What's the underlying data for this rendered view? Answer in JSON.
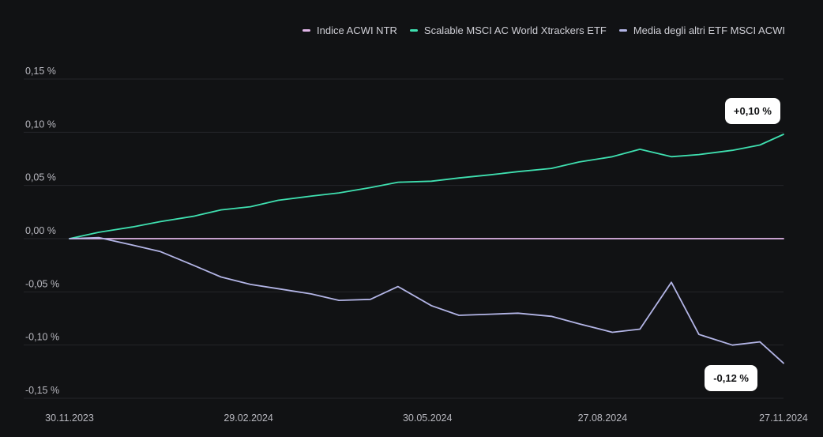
{
  "legend": [
    {
      "label": "Indice ACWI NTR",
      "color": "#e0b5e7"
    },
    {
      "label": "Scalable MSCI AC World Xtrackers ETF",
      "color": "#3fe0b0"
    },
    {
      "label": "Media degli altri ETF MSCI ACWI",
      "color": "#b3b5e6"
    }
  ],
  "callouts": {
    "top": "+0,10 %",
    "bottom": "-0,12 %"
  },
  "chart_data": {
    "type": "line",
    "ylim": [
      -0.15,
      0.15
    ],
    "y_ticks": [
      "0,15 %",
      "0,10 %",
      "0,05 %",
      "0,00 %",
      "-0,05 %",
      "-0,10 %",
      "-0,15 %"
    ],
    "y_tick_values": [
      0.15,
      0.1,
      0.05,
      0.0,
      -0.05,
      -0.1,
      -0.15
    ],
    "x_ticks": [
      "30.11.2023",
      "29.02.2024",
      "30.05.2024",
      "27.08.2024",
      "27.11.2024"
    ],
    "x": [
      "2023-11-30",
      "2023-12-15",
      "2024-01-01",
      "2024-01-15",
      "2024-02-01",
      "2024-02-15",
      "2024-03-01",
      "2024-03-15",
      "2024-04-01",
      "2024-04-15",
      "2024-05-01",
      "2024-05-15",
      "2024-06-01",
      "2024-06-15",
      "2024-07-01",
      "2024-07-15",
      "2024-08-01",
      "2024-08-15",
      "2024-09-01",
      "2024-09-15",
      "2024-10-01",
      "2024-10-15",
      "2024-11-01",
      "2024-11-15",
      "2024-11-27"
    ],
    "series": [
      {
        "name": "Indice ACWI NTR",
        "color": "#e0b5e7",
        "values": [
          0,
          0,
          0,
          0,
          0,
          0,
          0,
          0,
          0,
          0,
          0,
          0,
          0,
          0,
          0,
          0,
          0,
          0,
          0,
          0,
          0,
          0,
          0,
          0,
          0
        ]
      },
      {
        "name": "Scalable MSCI AC World Xtrackers ETF",
        "color": "#3fe0b0",
        "values": [
          0.0,
          0.006,
          0.011,
          0.016,
          0.021,
          0.027,
          0.03,
          0.036,
          0.04,
          0.043,
          0.048,
          0.053,
          0.054,
          0.057,
          0.06,
          0.063,
          0.066,
          0.072,
          0.077,
          0.084,
          0.077,
          0.079,
          0.083,
          0.088,
          0.098
        ]
      },
      {
        "name": "Media degli altri ETF MSCI ACWI",
        "color": "#b3b5e6",
        "values": [
          0.0,
          0.001,
          -0.006,
          -0.012,
          -0.025,
          -0.036,
          -0.043,
          -0.047,
          -0.052,
          -0.058,
          -0.057,
          -0.045,
          -0.063,
          -0.072,
          -0.071,
          -0.07,
          -0.073,
          -0.08,
          -0.088,
          -0.085,
          -0.041,
          -0.09,
          -0.1,
          -0.097,
          -0.117
        ]
      }
    ],
    "grid": true
  }
}
